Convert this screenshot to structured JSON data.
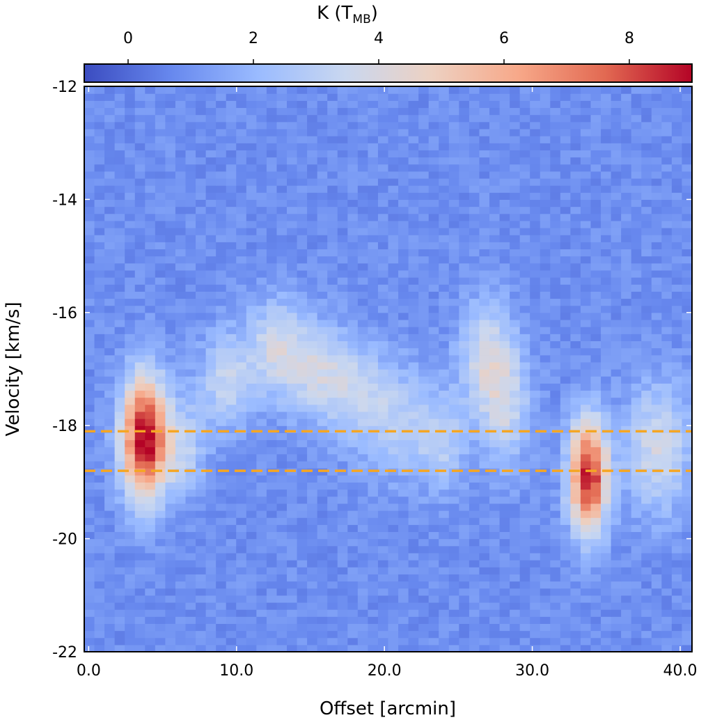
{
  "chart_data": {
    "type": "heatmap",
    "title": "",
    "xlabel": "Offset [arcmin]",
    "ylabel": "Velocity [km/s]",
    "colorbar": {
      "label_main": "K (T",
      "label_sub": "MB",
      "label_close": ")",
      "range": [
        -0.7,
        9.0
      ],
      "ticks": [
        0,
        2,
        4,
        6,
        8
      ],
      "tick_labels": [
        "0",
        "2",
        "4",
        "6",
        "8"
      ],
      "colormap": "coolwarm",
      "stops": [
        "#3b4cc0",
        "#6788ee",
        "#9abbff",
        "#c9d7f0",
        "#edd1c2",
        "#f7a889",
        "#e26952",
        "#b40426"
      ]
    },
    "xlim": [
      -0.3,
      40.8
    ],
    "ylim": [
      -22,
      -12
    ],
    "x_ticks": [
      0,
      10,
      20,
      30,
      40
    ],
    "x_tick_labels": [
      "0.0",
      "10.0",
      "20.0",
      "30.0",
      "40.0"
    ],
    "y_ticks": [
      -12,
      -14,
      -16,
      -18,
      -20,
      -22
    ],
    "y_tick_labels": [
      "-12",
      "-14",
      "-16",
      "-18",
      "-20",
      "-22"
    ],
    "grid_x": [
      -0.3,
      40.8,
      60
    ],
    "grid_y": [
      -22,
      -12,
      80
    ],
    "background_level": 0.9,
    "features": [
      {
        "offset": 3.8,
        "velocity": -18.2,
        "peak": 8.5,
        "sigma_offset": 1.1,
        "sigma_velocity": 0.75
      },
      {
        "offset": 33.8,
        "velocity": -18.9,
        "peak": 8.0,
        "sigma_offset": 0.9,
        "sigma_velocity": 0.7
      },
      {
        "offset": 9.3,
        "velocity": -17.2,
        "peak": 2.4,
        "sigma_offset": 1.3,
        "sigma_velocity": 0.6
      },
      {
        "offset": 12.6,
        "velocity": -16.6,
        "peak": 2.6,
        "sigma_offset": 1.3,
        "sigma_velocity": 0.6
      },
      {
        "offset": 15.3,
        "velocity": -17.0,
        "peak": 2.4,
        "sigma_offset": 1.5,
        "sigma_velocity": 0.6
      },
      {
        "offset": 18.0,
        "velocity": -17.4,
        "peak": 2.0,
        "sigma_offset": 1.5,
        "sigma_velocity": 0.6
      },
      {
        "offset": 21.0,
        "velocity": -17.9,
        "peak": 1.9,
        "sigma_offset": 1.8,
        "sigma_velocity": 0.7
      },
      {
        "offset": 24.0,
        "velocity": -18.3,
        "peak": 1.8,
        "sigma_offset": 1.2,
        "sigma_velocity": 0.6
      },
      {
        "offset": 27.0,
        "velocity": -16.8,
        "peak": 2.9,
        "sigma_offset": 1.3,
        "sigma_velocity": 0.7
      },
      {
        "offset": 28.3,
        "velocity": -17.8,
        "peak": 2.2,
        "sigma_offset": 1.2,
        "sigma_velocity": 0.7
      },
      {
        "offset": 38.5,
        "velocity": -18.4,
        "peak": 2.8,
        "sigma_offset": 1.6,
        "sigma_velocity": 0.8
      },
      {
        "offset": 6.5,
        "velocity": -18.4,
        "peak": 2.0,
        "sigma_offset": 1.0,
        "sigma_velocity": 0.6
      }
    ],
    "reference_lines": [
      {
        "velocity": -18.1,
        "color": "#f5a623",
        "style": "dashed"
      },
      {
        "velocity": -18.8,
        "color": "#f5a623",
        "style": "dashed"
      }
    ]
  }
}
